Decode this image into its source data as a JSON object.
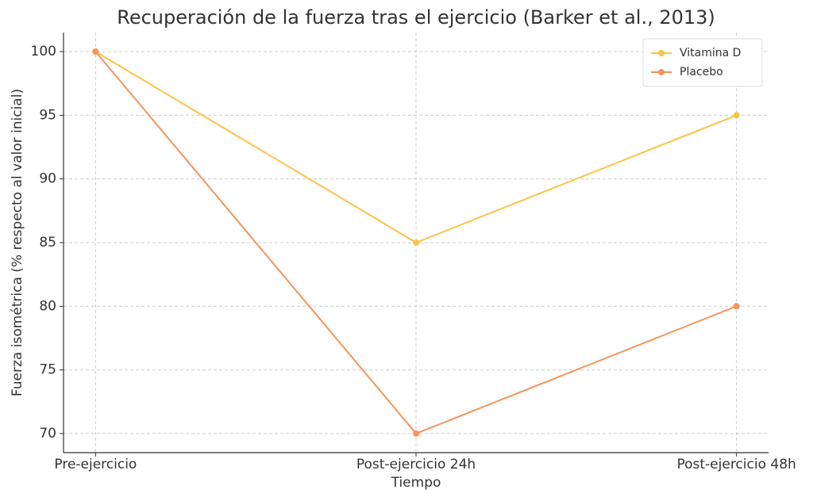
{
  "chart_data": {
    "type": "line",
    "title": "Recuperación de la fuerza tras el ejercicio (Barker et al., 2013)",
    "x_label": "Tiempo",
    "y_label": "Fuerza isométrica (% respecto al valor inicial)",
    "categories": [
      "Pre-ejercicio",
      "Post-ejercicio 24h",
      "Post-ejercicio 48h"
    ],
    "series": [
      {
        "name": "Vitamina D",
        "color": "#fbc447",
        "values": [
          100,
          85,
          95
        ]
      },
      {
        "name": "Placebo",
        "color": "#f4945a",
        "values": [
          100,
          70,
          80
        ]
      }
    ],
    "ylim": [
      68.5,
      101.5
    ],
    "yticks": [
      70,
      75,
      80,
      85,
      90,
      95,
      100
    ],
    "grid": true,
    "legend": "upper right"
  }
}
